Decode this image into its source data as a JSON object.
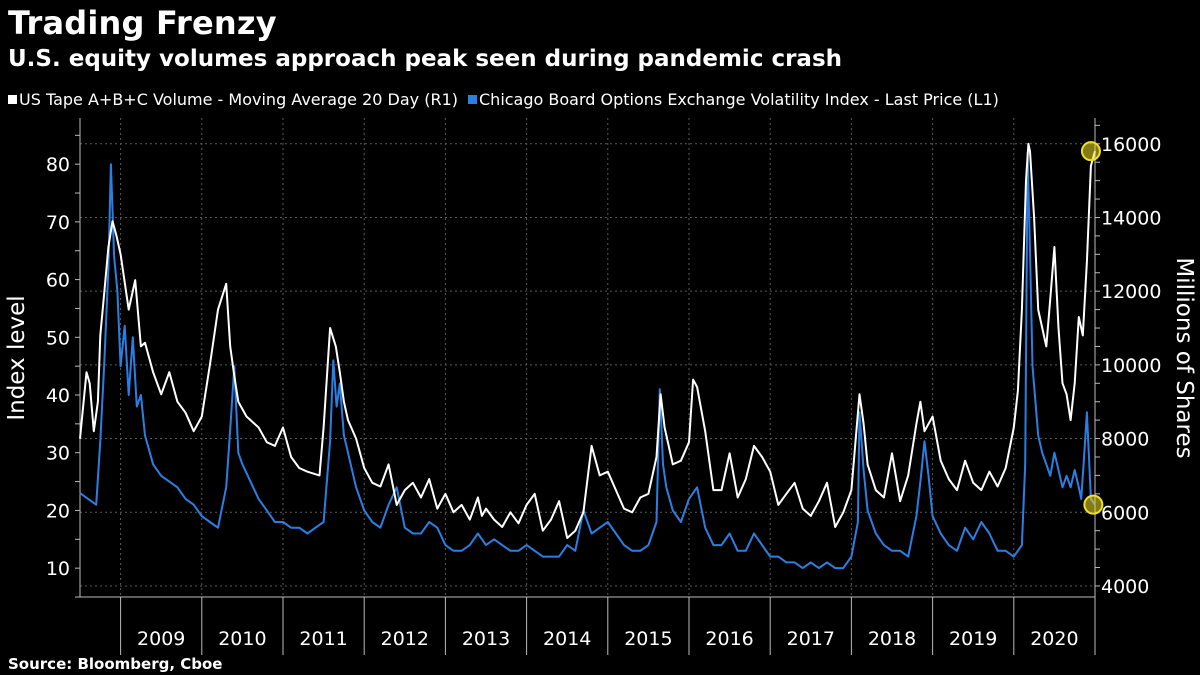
{
  "chart_data": {
    "type": "line",
    "title": "Trading Frenzy",
    "subtitle": "U.S. equity volumes approach peak seen during pandemic crash",
    "source": "Source: Bloomberg, Cboe",
    "ylabel_left": "Index level",
    "ylabel_right": "Millions of Shares",
    "ylim_left": [
      5,
      88
    ],
    "ylim_right": [
      3700,
      16700
    ],
    "y_ticks_left": [
      10,
      20,
      30,
      40,
      50,
      60,
      70,
      80
    ],
    "y_ticks_right": [
      4000,
      6000,
      8000,
      10000,
      12000,
      14000,
      16000
    ],
    "xlim": [
      2008.5,
      2021.0
    ],
    "x_ticks": [
      "2009",
      "2010",
      "2011",
      "2012",
      "2013",
      "2014",
      "2015",
      "2016",
      "2017",
      "2018",
      "2019",
      "2020"
    ],
    "grid": true,
    "legend_position": "top-left",
    "series": [
      {
        "name": "US Tape A+B+C Volume - Moving Average 20 Day (R1)",
        "axis": "right",
        "color": "#ffffff",
        "x": [
          2008.5,
          2008.58,
          2008.62,
          2008.67,
          2008.72,
          2008.75,
          2008.8,
          2008.85,
          2008.9,
          2008.95,
          2009.0,
          2009.1,
          2009.18,
          2009.25,
          2009.3,
          2009.4,
          2009.5,
          2009.6,
          2009.7,
          2009.8,
          2009.9,
          2010.0,
          2010.1,
          2010.2,
          2010.3,
          2010.35,
          2010.4,
          2010.45,
          2010.5,
          2010.55,
          2010.6,
          2010.7,
          2010.8,
          2010.9,
          2011.0,
          2011.1,
          2011.2,
          2011.3,
          2011.45,
          2011.5,
          2011.58,
          2011.65,
          2011.7,
          2011.75,
          2011.8,
          2011.9,
          2012.0,
          2012.1,
          2012.2,
          2012.3,
          2012.4,
          2012.5,
          2012.6,
          2012.7,
          2012.8,
          2012.9,
          2013.0,
          2013.1,
          2013.2,
          2013.3,
          2013.4,
          2013.45,
          2013.5,
          2013.6,
          2013.7,
          2013.8,
          2013.9,
          2014.0,
          2014.1,
          2014.2,
          2014.3,
          2014.4,
          2014.5,
          2014.6,
          2014.7,
          2014.8,
          2014.9,
          2015.0,
          2015.1,
          2015.2,
          2015.3,
          2015.4,
          2015.5,
          2015.6,
          2015.65,
          2015.7,
          2015.8,
          2015.9,
          2016.0,
          2016.05,
          2016.1,
          2016.2,
          2016.3,
          2016.4,
          2016.5,
          2016.6,
          2016.7,
          2016.8,
          2016.9,
          2017.0,
          2017.1,
          2017.2,
          2017.3,
          2017.4,
          2017.5,
          2017.6,
          2017.7,
          2017.8,
          2017.9,
          2018.0,
          2018.1,
          2018.15,
          2018.2,
          2018.3,
          2018.4,
          2018.5,
          2018.6,
          2018.7,
          2018.8,
          2018.85,
          2018.9,
          2019.0,
          2019.1,
          2019.2,
          2019.3,
          2019.4,
          2019.5,
          2019.6,
          2019.7,
          2019.8,
          2019.9,
          2020.0,
          2020.05,
          2020.1,
          2020.15,
          2020.18,
          2020.2,
          2020.25,
          2020.3,
          2020.4,
          2020.45,
          2020.5,
          2020.55,
          2020.6,
          2020.65,
          2020.7,
          2020.75,
          2020.8,
          2020.85,
          2020.9,
          2020.95,
          2021.0
        ],
        "values": [
          8000,
          9800,
          9500,
          8200,
          9000,
          10800,
          12000,
          13200,
          13900,
          13500,
          13000,
          11500,
          12300,
          10500,
          10600,
          9800,
          9200,
          9800,
          9000,
          8700,
          8200,
          8600,
          10000,
          11500,
          12200,
          10500,
          9700,
          9000,
          8800,
          8600,
          8500,
          8300,
          7900,
          7800,
          8300,
          7500,
          7200,
          7100,
          7000,
          8300,
          11000,
          10500,
          9800,
          9000,
          8500,
          8000,
          7200,
          6800,
          6700,
          7300,
          6200,
          6600,
          6800,
          6400,
          6900,
          6100,
          6500,
          6000,
          6200,
          5800,
          6400,
          5900,
          6100,
          5800,
          5600,
          6000,
          5700,
          6200,
          6500,
          5500,
          5800,
          6300,
          5300,
          5500,
          6000,
          7800,
          7000,
          7100,
          6600,
          6100,
          6000,
          6400,
          6500,
          7500,
          9200,
          8300,
          7300,
          7400,
          7900,
          9600,
          9400,
          8200,
          6600,
          6600,
          7600,
          6400,
          6900,
          7800,
          7500,
          7100,
          6200,
          6500,
          6800,
          6100,
          5900,
          6300,
          6800,
          5600,
          6000,
          6600,
          9200,
          8400,
          7300,
          6600,
          6400,
          7600,
          6300,
          7000,
          8400,
          9000,
          8200,
          8600,
          7400,
          6900,
          6600,
          7400,
          6800,
          6600,
          7100,
          6700,
          7200,
          8300,
          9300,
          11500,
          15000,
          16000,
          15800,
          14000,
          11500,
          10500,
          11800,
          13200,
          11000,
          9500,
          9200,
          8500,
          9500,
          11300,
          10800,
          12800,
          15400,
          15800
        ]
      },
      {
        "name": "Chicago Board Options Exchange Volatility Index - Last Price (L1)",
        "axis": "left",
        "color": "#2c7fe2",
        "x": [
          2008.5,
          2008.6,
          2008.7,
          2008.75,
          2008.8,
          2008.85,
          2008.88,
          2008.92,
          2008.96,
          2009.0,
          2009.05,
          2009.1,
          2009.15,
          2009.2,
          2009.25,
          2009.3,
          2009.4,
          2009.5,
          2009.6,
          2009.7,
          2009.8,
          2009.9,
          2010.0,
          2010.1,
          2010.2,
          2010.3,
          2010.35,
          2010.4,
          2010.45,
          2010.5,
          2010.6,
          2010.7,
          2010.8,
          2010.9,
          2011.0,
          2011.1,
          2011.2,
          2011.3,
          2011.4,
          2011.5,
          2011.58,
          2011.62,
          2011.66,
          2011.7,
          2011.75,
          2011.8,
          2011.85,
          2011.9,
          2012.0,
          2012.1,
          2012.2,
          2012.3,
          2012.4,
          2012.5,
          2012.6,
          2012.7,
          2012.8,
          2012.9,
          2013.0,
          2013.1,
          2013.2,
          2013.3,
          2013.4,
          2013.5,
          2013.6,
          2013.7,
          2013.8,
          2013.9,
          2014.0,
          2014.1,
          2014.2,
          2014.3,
          2014.4,
          2014.5,
          2014.6,
          2014.7,
          2014.8,
          2014.9,
          2015.0,
          2015.1,
          2015.2,
          2015.3,
          2015.4,
          2015.5,
          2015.6,
          2015.64,
          2015.68,
          2015.72,
          2015.8,
          2015.9,
          2016.0,
          2016.1,
          2016.2,
          2016.3,
          2016.4,
          2016.5,
          2016.6,
          2016.7,
          2016.8,
          2016.9,
          2017.0,
          2017.1,
          2017.2,
          2017.3,
          2017.4,
          2017.5,
          2017.6,
          2017.7,
          2017.8,
          2017.9,
          2018.0,
          2018.08,
          2018.1,
          2018.15,
          2018.2,
          2018.3,
          2018.4,
          2018.5,
          2018.6,
          2018.7,
          2018.8,
          2018.85,
          2018.9,
          2018.95,
          2019.0,
          2019.1,
          2019.2,
          2019.3,
          2019.4,
          2019.5,
          2019.6,
          2019.7,
          2019.8,
          2019.9,
          2020.0,
          2020.1,
          2020.14,
          2020.17,
          2020.2,
          2020.23,
          2020.26,
          2020.3,
          2020.35,
          2020.4,
          2020.45,
          2020.5,
          2020.55,
          2020.6,
          2020.65,
          2020.7,
          2020.75,
          2020.8,
          2020.83,
          2020.86,
          2020.9,
          2020.95,
          2021.0
        ],
        "values": [
          23,
          22,
          21,
          32,
          46,
          62,
          80,
          64,
          58,
          45,
          52,
          40,
          50,
          38,
          40,
          33,
          28,
          26,
          25,
          24,
          22,
          21,
          19,
          18,
          17,
          24,
          34,
          45,
          30,
          28,
          25,
          22,
          20,
          18,
          18,
          17,
          17,
          16,
          17,
          18,
          32,
          46,
          38,
          42,
          33,
          30,
          27,
          24,
          20,
          18,
          17,
          21,
          24,
          17,
          16,
          16,
          18,
          17,
          14,
          13,
          13,
          14,
          16,
          14,
          15,
          14,
          13,
          13,
          14,
          13,
          12,
          12,
          12,
          14,
          13,
          20,
          16,
          17,
          18,
          16,
          14,
          13,
          13,
          14,
          18,
          41,
          28,
          24,
          20,
          18,
          22,
          24,
          17,
          14,
          14,
          16,
          13,
          13,
          16,
          14,
          12,
          12,
          11,
          11,
          10,
          11,
          10,
          11,
          10,
          10,
          12,
          18,
          37,
          27,
          20,
          16,
          14,
          13,
          13,
          12,
          19,
          25,
          32,
          26,
          19,
          16,
          14,
          13,
          17,
          15,
          18,
          16,
          13,
          13,
          12,
          14,
          28,
          82,
          65,
          45,
          40,
          33,
          30,
          28,
          26,
          30,
          27,
          24,
          26,
          24,
          27,
          24,
          22,
          28,
          37,
          22,
          21
        ]
      }
    ],
    "annotations": [
      {
        "type": "marker",
        "series": 0,
        "x": 2020.95,
        "y": 15800,
        "color": "#f0e028"
      },
      {
        "type": "marker",
        "series": 1,
        "x": 2020.98,
        "y": 21,
        "color": "#f0e028"
      }
    ]
  }
}
